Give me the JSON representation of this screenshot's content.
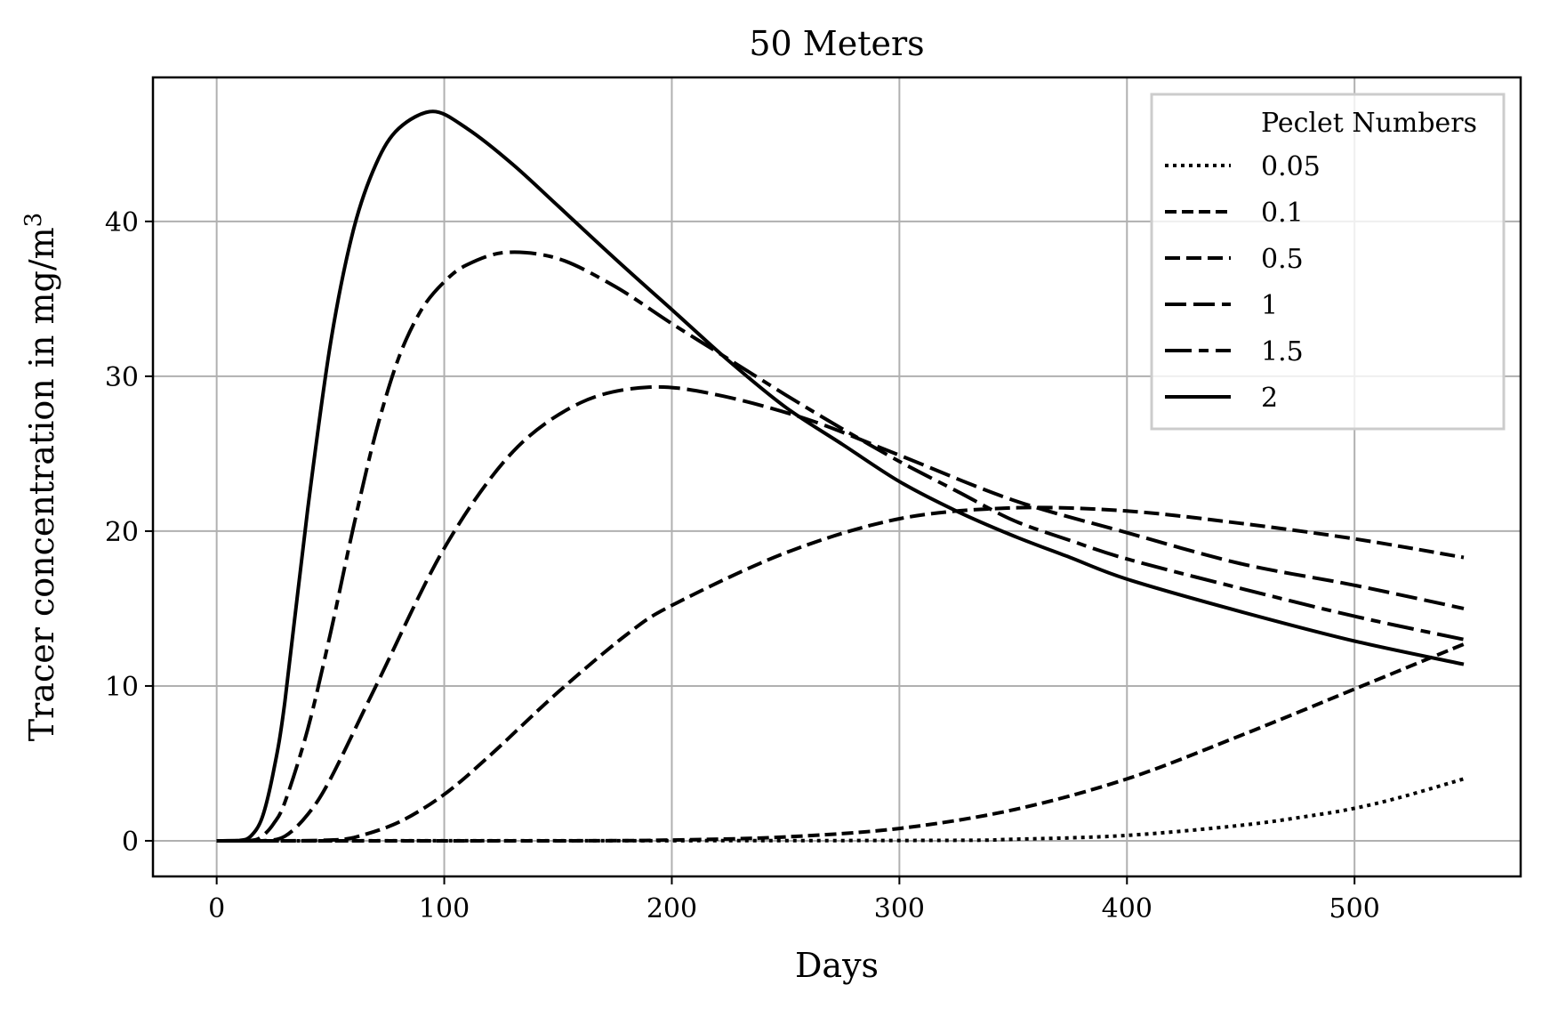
{
  "chart_data": {
    "type": "line",
    "title": "50 Meters",
    "xlabel": "Days",
    "ylabel": "Tracer concentration in mg/m",
    "ylabel_sup": "3",
    "xlim": [
      -28,
      573
    ],
    "ylim": [
      -2.3,
      49.3
    ],
    "xticks": [
      0,
      100,
      200,
      300,
      400,
      500
    ],
    "yticks": [
      0,
      10,
      20,
      30,
      40
    ],
    "grid": true,
    "legend": {
      "title": "Peclet Numbers",
      "placement": "top-right"
    },
    "series": [
      {
        "name": "0.05",
        "dash": "4 5",
        "x": [
          0,
          300,
          350,
          400,
          450,
          480,
          500,
          520,
          548
        ],
        "y": [
          0,
          0.02,
          0.1,
          0.35,
          1.0,
          1.6,
          2.1,
          2.8,
          4.0
        ]
      },
      {
        "name": "0.1",
        "dash": "13 6",
        "x": [
          0,
          150,
          200,
          250,
          300,
          350,
          400,
          450,
          500,
          548
        ],
        "y": [
          0,
          0.0,
          0.05,
          0.25,
          0.8,
          2.0,
          4.0,
          6.8,
          9.8,
          12.7
        ]
      },
      {
        "name": "0.5",
        "dash": "17 7",
        "x": [
          0,
          30,
          50,
          60,
          80,
          100,
          120,
          150,
          180,
          200,
          250,
          300,
          350,
          400,
          450,
          500,
          548
        ],
        "y": [
          0,
          0.0,
          0.05,
          0.2,
          1.2,
          3.0,
          5.5,
          9.6,
          13.3,
          15.2,
          18.6,
          20.8,
          21.5,
          21.3,
          20.5,
          19.5,
          18.3
        ]
      },
      {
        "name": "1",
        "dash": "24 8",
        "x": [
          0,
          20,
          30,
          40,
          50,
          70,
          100,
          130,
          160,
          190,
          220,
          260,
          300,
          350,
          400,
          450,
          500,
          548
        ],
        "y": [
          0,
          0.0,
          0.3,
          1.7,
          4.0,
          10.0,
          18.9,
          25.1,
          28.3,
          29.3,
          28.8,
          27.2,
          24.9,
          22.0,
          19.9,
          17.9,
          16.5,
          15.0
        ]
      },
      {
        "name": "1.5",
        "dash": "30 8 11 8",
        "x": [
          0,
          15,
          20,
          25,
          30,
          40,
          50,
          60,
          70,
          80,
          90,
          100,
          110,
          127,
          150,
          175,
          200,
          225,
          250,
          275,
          300,
          325,
          350,
          375,
          400,
          450,
          500,
          548
        ],
        "y": [
          0,
          0.02,
          0.3,
          1.1,
          2.5,
          7.2,
          13.4,
          20.2,
          26.4,
          31.2,
          34.3,
          36.1,
          37.2,
          38.0,
          37.6,
          35.8,
          33.4,
          31.1,
          28.8,
          26.6,
          24.5,
          22.6,
          20.7,
          19.4,
          18.2,
          16.3,
          14.5,
          13.0
        ]
      },
      {
        "name": "2",
        "dash": "",
        "x": [
          0,
          10,
          15,
          20,
          25,
          30,
          40,
          50,
          60,
          70,
          80,
          95,
          110,
          130,
          150,
          175,
          200,
          225,
          250,
          275,
          300,
          325,
          350,
          375,
          400,
          450,
          500,
          548
        ],
        "y": [
          0,
          0.02,
          0.3,
          1.5,
          4.5,
          9.0,
          21.4,
          32.1,
          39.4,
          43.7,
          46.0,
          47.1,
          46.0,
          43.7,
          41.0,
          37.6,
          34.3,
          31.0,
          28.0,
          25.6,
          23.2,
          21.3,
          19.7,
          18.3,
          16.9,
          14.8,
          12.9,
          11.4
        ]
      }
    ]
  }
}
